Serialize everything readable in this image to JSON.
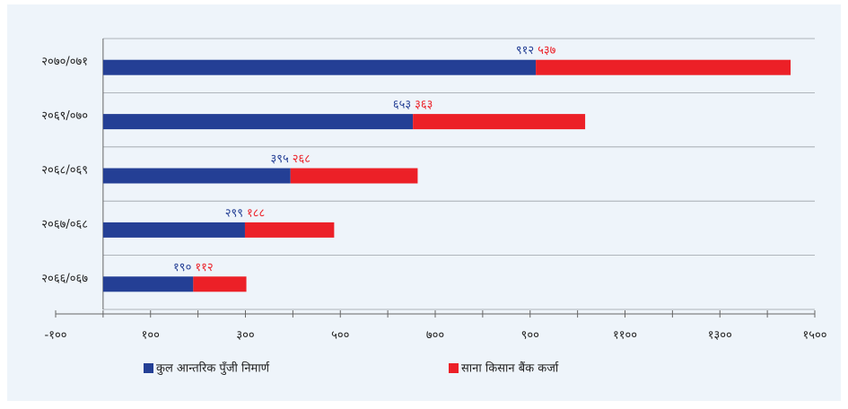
{
  "chart_data": {
    "type": "stacked-barh",
    "categories": [
      "२०७०/०७१",
      "२०६९/०७०",
      "२०६८/०६९",
      "२०६७/०६८",
      "२०६६/०६७"
    ],
    "series": [
      {
        "name": "कुल आन्तरिक पुँजी निमार्ण",
        "color": "#243f95",
        "values": [
          912,
          653,
          395,
          299,
          190
        ],
        "value_labels": [
          "९१२",
          "६५३",
          "३९५",
          "२९९",
          "१९०"
        ]
      },
      {
        "name": "साना किसान बैंक कर्जा",
        "color": "#ec2027",
        "values": [
          537,
          363,
          268,
          188,
          112
        ],
        "value_labels": [
          "५३७",
          "३६३",
          "२६८",
          "१८८",
          "११२"
        ]
      }
    ],
    "xlim": [
      -100,
      1500
    ],
    "xticks": [
      {
        "value": -100,
        "label": "-१००"
      },
      {
        "value": 100,
        "label": "१००"
      },
      {
        "value": 300,
        "label": "३००"
      },
      {
        "value": 500,
        "label": "५००"
      },
      {
        "value": 700,
        "label": "७००"
      },
      {
        "value": 900,
        "label": "९००"
      },
      {
        "value": 1100,
        "label": "११००"
      },
      {
        "value": 1300,
        "label": "१३००"
      },
      {
        "value": 1500,
        "label": "१५००"
      }
    ],
    "xminorticks": [
      0,
      200,
      400,
      600,
      800,
      1000,
      1200,
      1400
    ],
    "grid": true,
    "legend": "bottom"
  }
}
